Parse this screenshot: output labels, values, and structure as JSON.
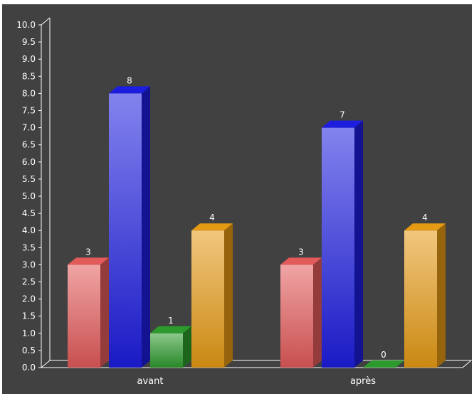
{
  "chart_data": {
    "type": "bar",
    "categories": [
      "avant",
      "après"
    ],
    "series": [
      {
        "color": "#e35a5a",
        "values": [
          3,
          3
        ]
      },
      {
        "color": "#1d1de0",
        "values": [
          8,
          7
        ]
      },
      {
        "color": "#2c9a2c",
        "values": [
          1,
          0
        ]
      },
      {
        "color": "#e59a14",
        "values": [
          4,
          4
        ]
      }
    ],
    "ylim": [
      0,
      10
    ],
    "ytick_step": 0.5,
    "ytick_labels": [
      "0.0",
      "0.5",
      "1.0",
      "1.5",
      "2.0",
      "2.5",
      "3.0",
      "3.5",
      "4.0",
      "4.5",
      "5.0",
      "5.5",
      "6.0",
      "6.5",
      "7.0",
      "7.5",
      "8.0",
      "8.5",
      "9.0",
      "9.5",
      "10.0"
    ],
    "style": "3d-bars",
    "grid": false,
    "legend": "none",
    "background": "#414141"
  }
}
